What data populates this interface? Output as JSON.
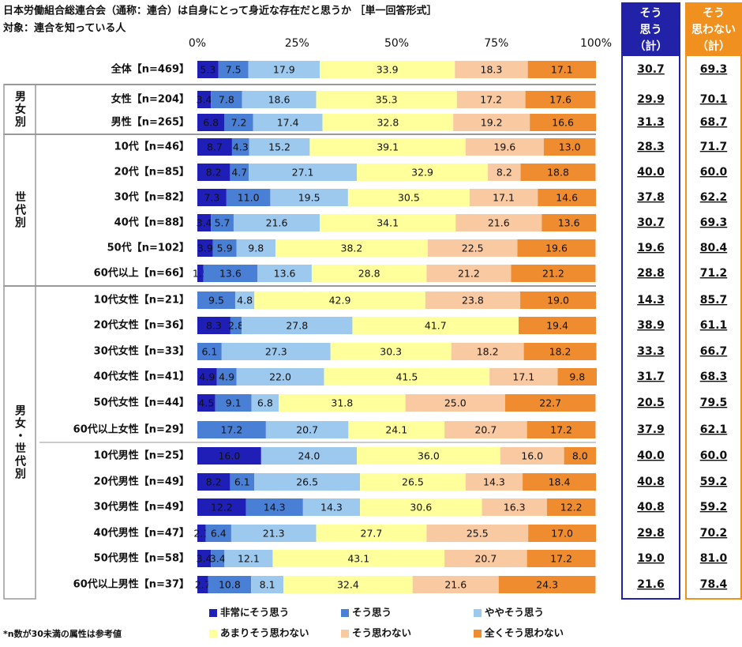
{
  "chart_data": {
    "type": "bar",
    "orientation": "horizontal",
    "stacked": true,
    "title": "日本労働組合総連合会（通称：連合）は自身にとって身近な存在だと思うか ［単一回答形式］",
    "subtitle": "対象：連合を知っている人",
    "footnote": "*n数が30未満の属性は参考値",
    "groups": [
      "男女別",
      "世代別",
      "男女・世代別"
    ],
    "categories": [
      "全体【n=469】",
      "女性【n=204】",
      "男性【n=265】",
      "10代【n=46】",
      "20代【n=85】",
      "30代【n=82】",
      "40代【n=88】",
      "50代【n=102】",
      "60代以上【n=66】",
      "10代女性【n=21】",
      "20代女性【n=36】",
      "30代女性【n=33】",
      "40代女性【n=41】",
      "50代女性【n=44】",
      "60代以上女性【n=29】",
      "10代男性【n=25】",
      "20代男性【n=49】",
      "30代男性【n=49】",
      "40代男性【n=47】",
      "50代男性【n=58】",
      "60代以上男性【n=37】"
    ],
    "xlim": [
      0,
      100
    ],
    "xticks": [
      {
        "value": 0,
        "label": "0%"
      },
      {
        "value": 25,
        "label": "25%"
      },
      {
        "value": 50,
        "label": "50%"
      },
      {
        "value": 75,
        "label": "75%"
      },
      {
        "value": 100,
        "label": "100%"
      }
    ],
    "series": [
      {
        "name": "非常にそう思う",
        "color": "#1f1fb8",
        "label_color": "#ffffff",
        "values": [
          5.3,
          3.4,
          6.8,
          8.7,
          8.2,
          7.3,
          3.4,
          3.9,
          1.5,
          0,
          8.3,
          0,
          4.9,
          4.5,
          0,
          16.0,
          8.2,
          12.2,
          2.1,
          3.4,
          2.7
        ],
        "value_labels": [
          "5.3",
          "3.4",
          "6.8",
          "8.7",
          "8.2",
          "7.3",
          "3.4",
          "3.9",
          "1.5",
          null,
          "8.3",
          null,
          "4.9",
          "4.5",
          null,
          "16.0",
          "8.2",
          "12.2",
          "2.1",
          "3.4",
          "2.7"
        ]
      },
      {
        "name": "そう思う",
        "color": "#4a7fd6",
        "label_color": "#111111",
        "values": [
          7.5,
          7.8,
          7.2,
          4.3,
          4.7,
          11.0,
          5.7,
          5.9,
          13.6,
          9.5,
          2.8,
          6.1,
          4.9,
          9.1,
          17.2,
          0,
          6.1,
          14.3,
          6.4,
          3.4,
          10.8
        ],
        "value_labels": [
          "7.5",
          "7.8",
          "7.2",
          "4.3",
          "4.7",
          "11.0",
          "5.7",
          "5.9",
          "13.6",
          "9.5",
          "2.8",
          "6.1",
          "4.9",
          "9.1",
          "17.2",
          null,
          "6.1",
          "14.3",
          "6.4",
          "3.4",
          "10.8"
        ]
      },
      {
        "name": "ややそう思う",
        "color": "#9ec9ef",
        "label_color": "#111111",
        "values": [
          17.9,
          18.6,
          17.4,
          15.2,
          27.1,
          19.5,
          21.6,
          9.8,
          13.6,
          4.8,
          27.8,
          27.3,
          22.0,
          6.8,
          20.7,
          24.0,
          26.5,
          14.3,
          21.3,
          12.1,
          8.1
        ],
        "value_labels": [
          "17.9",
          "18.6",
          "17.4",
          "15.2",
          "27.1",
          "19.5",
          "21.6",
          "9.8",
          "13.6",
          "4.8",
          "27.8",
          "27.3",
          "22.0",
          "6.8",
          "20.7",
          "24.0",
          "26.5",
          "14.3",
          "21.3",
          "12.1",
          "8.1"
        ]
      },
      {
        "name": "あまりそう思わない",
        "color": "#ffff9c",
        "label_color": "#111111",
        "values": [
          33.9,
          35.3,
          32.8,
          39.1,
          32.9,
          30.5,
          34.1,
          38.2,
          28.8,
          42.9,
          41.7,
          30.3,
          41.5,
          31.8,
          24.1,
          36.0,
          26.5,
          30.6,
          27.7,
          43.1,
          32.4
        ],
        "value_labels": [
          "33.9",
          "35.3",
          "32.8",
          "39.1",
          "32.9",
          "30.5",
          "34.1",
          "38.2",
          "28.8",
          "42.9",
          "41.7",
          "30.3",
          "41.5",
          "31.8",
          "24.1",
          "36.0",
          "26.5",
          "30.6",
          "27.7",
          "43.1",
          "32.4"
        ]
      },
      {
        "name": "そう思わない",
        "color": "#f9c9a2",
        "label_color": "#111111",
        "values": [
          18.3,
          17.2,
          19.2,
          19.6,
          8.2,
          17.1,
          21.6,
          22.5,
          21.2,
          23.8,
          0,
          18.2,
          17.1,
          25.0,
          20.7,
          16.0,
          14.3,
          16.3,
          25.5,
          20.7,
          21.6
        ],
        "value_labels": [
          "18.3",
          "17.2",
          "19.2",
          "19.6",
          "8.2",
          "17.1",
          "21.6",
          "22.5",
          "21.2",
          "23.8",
          null,
          "18.2",
          "17.1",
          "25.0",
          "20.7",
          "16.0",
          "14.3",
          "16.3",
          "25.5",
          "20.7",
          "21.6"
        ]
      },
      {
        "name": "全くそう思わない",
        "color": "#f08c30",
        "label_color": "#111111",
        "values": [
          17.1,
          17.6,
          16.6,
          13.0,
          18.8,
          14.6,
          13.6,
          19.6,
          21.2,
          19.0,
          19.4,
          18.2,
          9.8,
          22.7,
          17.2,
          8.0,
          18.4,
          12.2,
          17.0,
          17.2,
          24.3
        ],
        "value_labels": [
          "17.1",
          "17.6",
          "16.6",
          "13.0",
          "18.8",
          "14.6",
          "13.6",
          "19.6",
          "21.2",
          "19.0",
          "19.4",
          "18.2",
          "9.8",
          "22.7",
          "17.2",
          "8.0",
          "18.4",
          "12.2",
          "17.0",
          "17.2",
          "24.3"
        ]
      }
    ],
    "totals": [
      {
        "name": [
          "そう",
          "思う",
          "（計）"
        ],
        "color": "#2222a8",
        "values": [
          30.7,
          29.9,
          31.3,
          28.3,
          40.0,
          37.8,
          30.7,
          19.6,
          28.8,
          14.3,
          38.9,
          33.3,
          31.7,
          20.5,
          37.9,
          40.0,
          40.8,
          40.8,
          29.8,
          19.0,
          21.6
        ],
        "value_labels": [
          "30.7",
          "29.9",
          "31.3",
          "28.3",
          "40.0",
          "37.8",
          "30.7",
          "19.6",
          "28.8",
          "14.3",
          "38.9",
          "33.3",
          "31.7",
          "20.5",
          "37.9",
          "40.0",
          "40.8",
          "40.8",
          "29.8",
          "19.0",
          "21.6"
        ]
      },
      {
        "name": [
          "そう",
          "思わない",
          "（計）"
        ],
        "color": "#f0901e",
        "values": [
          69.3,
          70.1,
          68.7,
          71.7,
          60.0,
          62.2,
          69.3,
          80.4,
          71.2,
          85.7,
          61.1,
          66.7,
          68.3,
          79.5,
          62.1,
          60.0,
          59.2,
          59.2,
          70.2,
          81.0,
          78.4
        ],
        "value_labels": [
          "69.3",
          "70.1",
          "68.7",
          "71.7",
          "60.0",
          "62.2",
          "69.3",
          "80.4",
          "71.2",
          "85.7",
          "61.1",
          "66.7",
          "68.3",
          "79.5",
          "62.1",
          "60.0",
          "59.2",
          "59.2",
          "70.2",
          "81.0",
          "78.4"
        ]
      }
    ]
  }
}
